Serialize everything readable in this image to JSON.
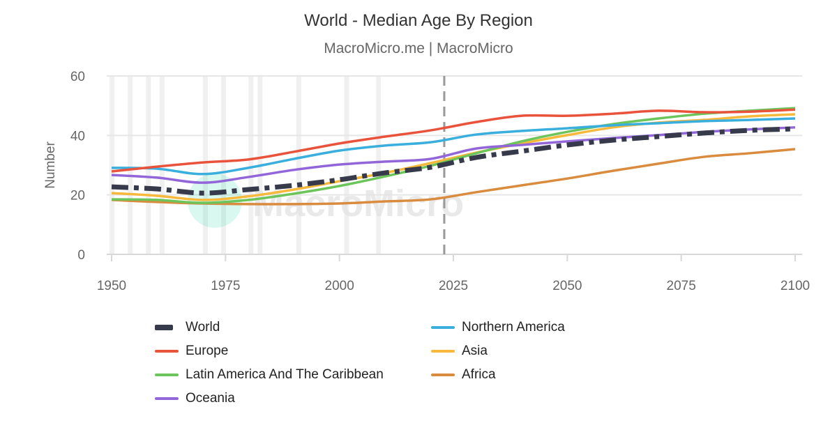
{
  "chart_data": {
    "type": "line",
    "title": "World - Median Age By Region",
    "subtitle": "MacroMicro.me | MacroMicro",
    "ylabel": "Number",
    "xlabel": "",
    "xlim": [
      1950,
      2100
    ],
    "ylim": [
      0,
      60
    ],
    "xticks": [
      1950,
      1975,
      2000,
      2025,
      2050,
      2075,
      2100
    ],
    "yticks": [
      0,
      20,
      40,
      60
    ],
    "grid": "horizontal",
    "legend_position": "bottom",
    "x": [
      1950,
      1960,
      1970,
      1980,
      1990,
      2000,
      2010,
      2020,
      2030,
      2040,
      2050,
      2060,
      2070,
      2080,
      2090,
      2100
    ],
    "vertical_marker_year": 2023,
    "shaded_years": [
      1950,
      1954,
      1958,
      1961,
      1970.5,
      1974.5,
      1980.5,
      1982.5,
      1991,
      2001.5,
      2008.5
    ],
    "series": [
      {
        "name": "World",
        "color": "#363a4b",
        "style": "dashdot",
        "values": [
          22.7,
          22,
          20.6,
          21.8,
          23.2,
          25.1,
          27.4,
          29.3,
          32.6,
          34.7,
          36.8,
          38.4,
          39.6,
          40.8,
          41.7,
          42.2
        ]
      },
      {
        "name": "Northern America",
        "color": "#3aaedc",
        "style": "solid",
        "values": [
          29.1,
          28.8,
          27,
          29.1,
          32.1,
          34.9,
          36.6,
          37.7,
          40.3,
          41.5,
          42.4,
          43.4,
          44.1,
          44.8,
          45.2,
          45.7
        ]
      },
      {
        "name": "Europe",
        "color": "#e9533c",
        "style": "solid",
        "values": [
          27.9,
          29.5,
          30.9,
          31.9,
          34.5,
          37.3,
          39.6,
          41.7,
          44.5,
          46.6,
          46.6,
          47.3,
          48.3,
          47.8,
          48,
          48.7
        ]
      },
      {
        "name": "Asia",
        "color": "#f6b93b",
        "style": "solid",
        "values": [
          20.6,
          19.7,
          18.3,
          19.5,
          21.8,
          24.6,
          27.4,
          30.7,
          34.2,
          37.3,
          40.1,
          42.7,
          44.3,
          45.2,
          46.4,
          47.1
        ]
      },
      {
        "name": "Latin America And The Caribbean",
        "color": "#6cc55a",
        "style": "solid",
        "values": [
          18.5,
          18.3,
          17.3,
          18.3,
          20.4,
          23,
          26.2,
          29.8,
          34,
          38,
          41.2,
          43.8,
          45.7,
          47.3,
          48.3,
          49.2
        ]
      },
      {
        "name": "Africa",
        "color": "#d98b3e",
        "style": "solid",
        "values": [
          18.3,
          17.6,
          17.1,
          16.9,
          16.9,
          17.1,
          17.8,
          18.5,
          20.9,
          23.2,
          25.5,
          28.1,
          30.5,
          32.8,
          34,
          35.4
        ]
      },
      {
        "name": "Oceania",
        "color": "#9266d9",
        "style": "solid",
        "values": [
          26.7,
          25.8,
          24.1,
          26,
          28.4,
          30.2,
          31.2,
          32.1,
          35.6,
          36.8,
          38,
          39.1,
          40.1,
          41.2,
          42,
          42.7
        ]
      }
    ],
    "watermark": "MacroMicro"
  }
}
